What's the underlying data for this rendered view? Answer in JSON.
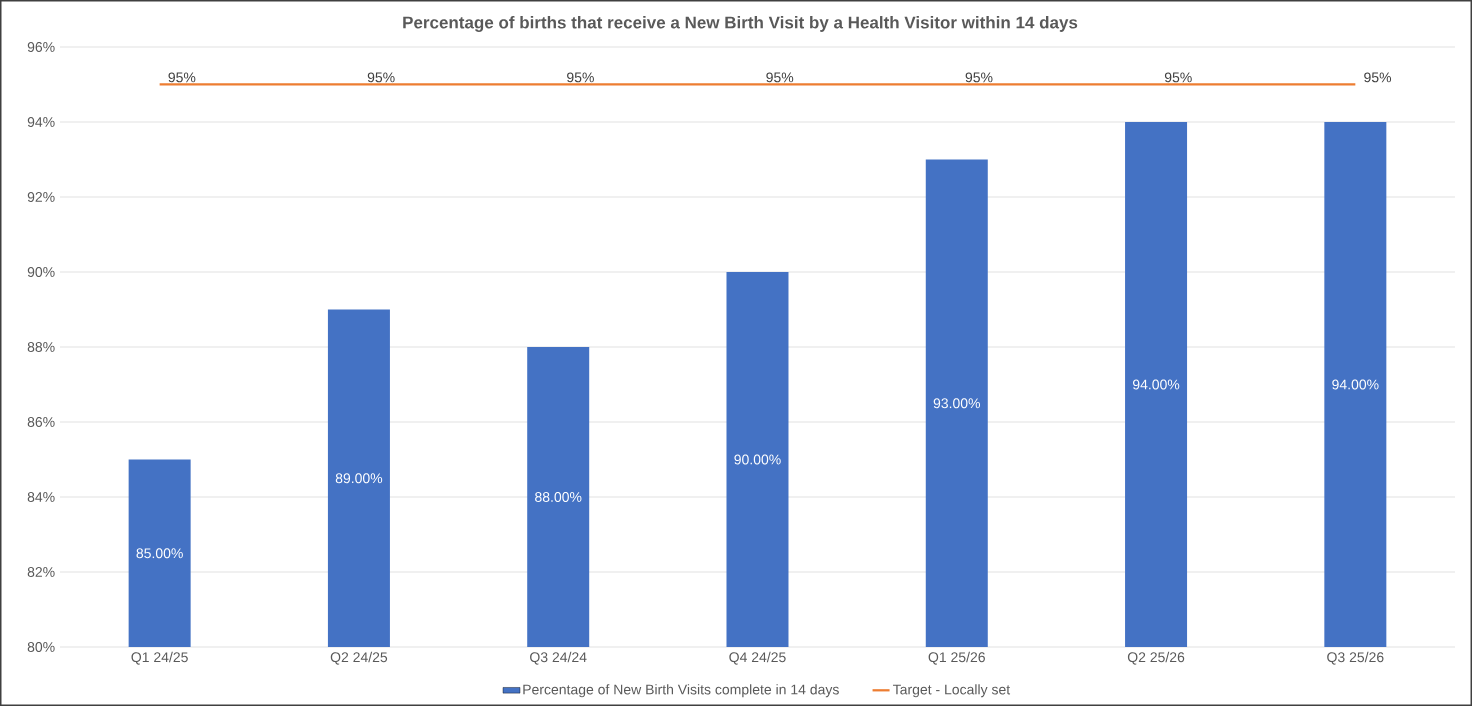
{
  "chart_data": {
    "type": "bar",
    "title": "Percentage of births that receive a New Birth Visit by a Health Visitor within 14 days",
    "categories": [
      "Q1 24/25",
      "Q2 24/25",
      "Q3 24/24",
      "Q4 24/25",
      "Q1 25/26",
      "Q2 25/26",
      "Q3 25/26"
    ],
    "series": [
      {
        "name": "Percentage of New Birth Visits complete in 14 days",
        "color": "#4472c4",
        "values": [
          85,
          89,
          88,
          90,
          93,
          94,
          94
        ],
        "value_labels": [
          "85.00%",
          "89.00%",
          "88.00%",
          "90.00%",
          "93.00%",
          "94.00%",
          "94.00%"
        ]
      },
      {
        "type": "line",
        "name": "Target - Locally set",
        "color": "#ed7d31",
        "values": [
          95,
          95,
          95,
          95,
          95,
          95,
          95
        ],
        "value_labels": [
          "95%",
          "95%",
          "95%",
          "95%",
          "95%",
          "95%",
          "95%"
        ]
      }
    ],
    "ylim": [
      80,
      96
    ],
    "yticks": [
      {
        "value": 80,
        "label": "80%"
      },
      {
        "value": 82,
        "label": "82%"
      },
      {
        "value": 84,
        "label": "84%"
      },
      {
        "value": 86,
        "label": "86%"
      },
      {
        "value": 88,
        "label": "88%"
      },
      {
        "value": 90,
        "label": "90%"
      },
      {
        "value": 92,
        "label": "92%"
      },
      {
        "value": 94,
        "label": "94%"
      },
      {
        "value": 96,
        "label": "96%"
      }
    ],
    "grid": "y",
    "legend": "bottom",
    "marker": "none"
  }
}
